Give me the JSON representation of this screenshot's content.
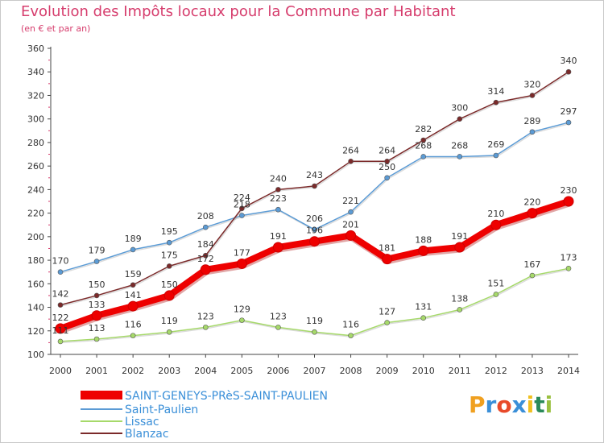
{
  "title": "Evolution des Impôts locaux pour la Commune par Habitant",
  "subtitle": "(en € et par an)",
  "brand": {
    "name": "Proxiti"
  },
  "chart_data": {
    "type": "line",
    "x": [
      2000,
      2001,
      2002,
      2003,
      2004,
      2005,
      2006,
      2007,
      2008,
      2009,
      2010,
      2011,
      2012,
      2013,
      2014
    ],
    "ylim": [
      100,
      360
    ],
    "yticks": [
      100,
      120,
      140,
      160,
      180,
      200,
      220,
      240,
      260,
      280,
      300,
      320,
      340,
      360
    ],
    "grid": false,
    "legend_position": "bottom-left",
    "series": [
      {
        "name": "SAINT-GENEYS-PRèS-SAINT-PAULIEN",
        "color": "#ee0000",
        "values": [
          122,
          133,
          141,
          150,
          172,
          177,
          191,
          196,
          201,
          181,
          188,
          191,
          210,
          220,
          230
        ]
      },
      {
        "name": "Saint-Paulien",
        "color": "#5b9bd5",
        "values": [
          170,
          179,
          189,
          195,
          208,
          218,
          223,
          206,
          221,
          250,
          268,
          268,
          269,
          289,
          297
        ]
      },
      {
        "name": "Lissac",
        "color": "#a6d96a",
        "values": [
          111,
          113,
          116,
          119,
          123,
          129,
          123,
          119,
          116,
          127,
          131,
          138,
          151,
          167,
          173
        ]
      },
      {
        "name": "Blanzac",
        "color": "#7b2a2a",
        "values": [
          142,
          150,
          159,
          175,
          184,
          224,
          240,
          243,
          264,
          264,
          282,
          300,
          314,
          320,
          340
        ]
      }
    ]
  }
}
